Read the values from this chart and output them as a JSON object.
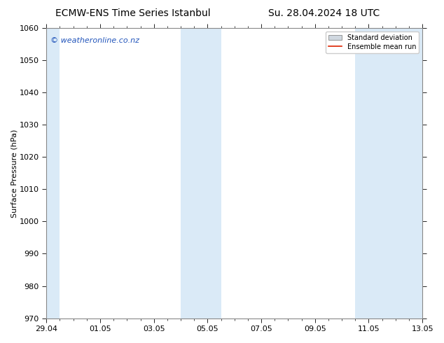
{
  "title_left": "ECMW-ENS Time Series Istanbul",
  "title_right": "Su. 28.04.2024 18 UTC",
  "ylabel": "Surface Pressure (hPa)",
  "ylim": [
    970,
    1060
  ],
  "yticks": [
    970,
    980,
    990,
    1000,
    1010,
    1020,
    1030,
    1040,
    1050,
    1060
  ],
  "xtick_labels": [
    "29.04",
    "01.05",
    "03.05",
    "05.05",
    "07.05",
    "09.05",
    "11.05",
    "13.05"
  ],
  "xtick_positions": [
    0,
    2,
    4,
    6,
    8,
    10,
    12,
    14
  ],
  "shade_bands": [
    {
      "xstart": -0.05,
      "xend": 0.5,
      "color": "#daeaf7"
    },
    {
      "xstart": 5.0,
      "xend": 6.5,
      "color": "#daeaf7"
    },
    {
      "xstart": 11.5,
      "xend": 14.05,
      "color": "#daeaf7"
    }
  ],
  "watermark_text": "© weatheronline.co.nz",
  "watermark_color": "#2255bb",
  "legend_std_label": "Standard deviation",
  "legend_mean_label": "Ensemble mean run",
  "legend_std_facecolor": "#d0d8e0",
  "legend_std_edgecolor": "#888888",
  "legend_mean_color": "#dd2200",
  "bg_color": "#ffffff",
  "plot_bg_color": "#ffffff",
  "spine_color": "#888888",
  "title_fontsize": 10,
  "ylabel_fontsize": 8,
  "tick_fontsize": 8,
  "watermark_fontsize": 8,
  "legend_fontsize": 7
}
